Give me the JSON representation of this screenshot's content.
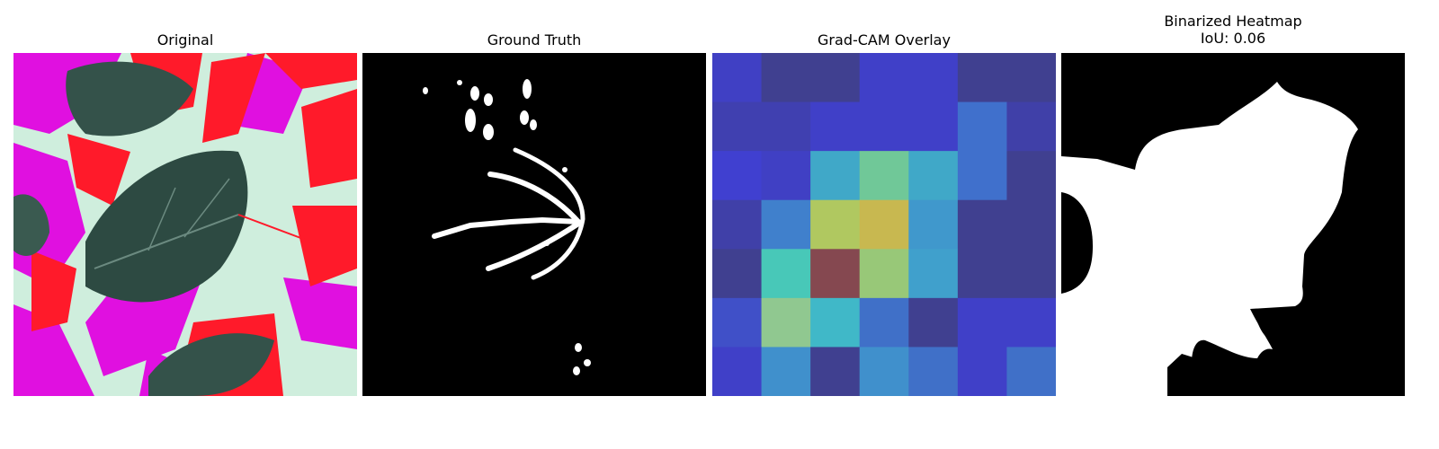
{
  "panels": [
    {
      "title": "Original"
    },
    {
      "title": "Ground Truth"
    },
    {
      "title": "Grad-CAM Overlay"
    },
    {
      "title": "Binarized Heatmap",
      "subtitle": "IoU: 0.06"
    }
  ],
  "colors": {
    "leaf_dark": "#2d4a42",
    "magenta": "#e010e0",
    "red": "#ff1a2a",
    "pale_green": "#cfeedd",
    "mask_white": "#ffffff",
    "mask_black": "#000000",
    "cam_low": "#4040c8",
    "cam_high": "#854850"
  },
  "gradcam_grid": [
    [
      "#4040c4",
      "#404090",
      "#404090",
      "#4040c8",
      "#4040c8",
      "#404090",
      "#404090"
    ],
    [
      "#4040b0",
      "#4040b0",
      "#4040c8",
      "#4040c8",
      "#4040c8",
      "#4070cc",
      "#4040a8"
    ],
    [
      "#4040d0",
      "#4040c4",
      "#40a8c8",
      "#70c898",
      "#40a8c8",
      "#4070cc",
      "#404090"
    ],
    [
      "#4040a8",
      "#4080cc",
      "#b0c860",
      "#c8b850",
      "#4098cc",
      "#404090",
      "#404090"
    ],
    [
      "#404090",
      "#48c8b8",
      "#854850",
      "#98c878",
      "#40a0cc",
      "#404090",
      "#404090"
    ],
    [
      "#4050c8",
      "#90c890",
      "#40b8c8",
      "#4070c8",
      "#404090",
      "#4040c8",
      "#4040c8"
    ],
    [
      "#4040c8",
      "#4090cc",
      "#404090",
      "#4090cc",
      "#4070c8",
      "#4040c8",
      "#4070c8"
    ]
  ]
}
